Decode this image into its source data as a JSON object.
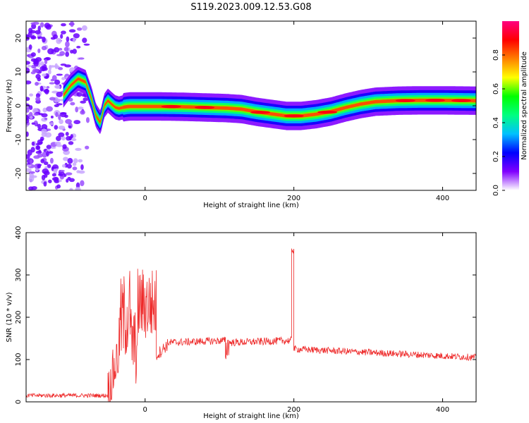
{
  "figure": {
    "title": "S119.2023.009.12.53.G08"
  },
  "chart_data": [
    {
      "type": "heatmap",
      "xlabel": "Height of straight line (km)",
      "ylabel": "Frequency (Hz)",
      "xlim": [
        -160,
        445
      ],
      "ylim": [
        -25,
        25
      ],
      "xticks": [
        0,
        200,
        400
      ],
      "yticks": [
        -20,
        -10,
        0,
        10,
        20
      ],
      "grid": false,
      "noise_region_x": [
        -160,
        -75
      ],
      "ridge": {
        "x": [
          -110,
          -100,
          -90,
          -80,
          -72,
          -66,
          -60,
          -55,
          -50,
          -45,
          -40,
          -35,
          -30,
          -25,
          -20,
          -10,
          0,
          20,
          50,
          80,
          110,
          130,
          150,
          170,
          190,
          210,
          230,
          250,
          270,
          290,
          310,
          340,
          370,
          400,
          445
        ],
        "y": [
          3,
          6,
          8,
          7,
          2,
          -3,
          -5,
          0,
          1.5,
          0.5,
          -0.5,
          -0.8,
          -0.5,
          -0.3,
          -0.2,
          -0.2,
          -0.2,
          -0.2,
          -0.3,
          -0.5,
          -0.7,
          -1,
          -1.8,
          -2.4,
          -3,
          -3,
          -2.5,
          -1.7,
          -0.5,
          0.5,
          1.2,
          1.5,
          1.6,
          1.6,
          1.5
        ]
      },
      "colorbar": {
        "label": "Normalized spectral amplitude",
        "range": [
          0,
          1
        ],
        "ticks": [
          0.0,
          0.2,
          0.4,
          0.6,
          0.8
        ],
        "colormap": [
          "#ffffff",
          "#8000ff",
          "#0000ff",
          "#00c0ff",
          "#00ff80",
          "#00ff00",
          "#ffff00",
          "#ff8000",
          "#ff0000",
          "#ff0080"
        ]
      }
    },
    {
      "type": "line",
      "xlabel": "Height of straight line (km)",
      "ylabel": "SNR (10 * v/v)",
      "xlim": [
        -160,
        445
      ],
      "ylim": [
        0,
        400
      ],
      "xticks": [
        0,
        200,
        400
      ],
      "yticks": [
        0,
        100,
        200,
        300,
        400
      ],
      "grid": false,
      "series_color": "#ee2a2a",
      "segments": [
        {
          "x": [
            -160,
            -50
          ],
          "y": [
            15,
            15
          ],
          "noise": 5
        },
        {
          "x": [
            -50,
            -35
          ],
          "y": [
            20,
            120
          ],
          "noise": 60
        },
        {
          "x": [
            -35,
            -20
          ],
          "y": [
            180,
            220
          ],
          "noise": 110
        },
        {
          "x": [
            -20,
            -10
          ],
          "y": [
            150,
            120
          ],
          "noise": 90
        },
        {
          "x": [
            -10,
            15
          ],
          "y": [
            230,
            230
          ],
          "noise": 90
        },
        {
          "x": [
            15,
            30
          ],
          "y": [
            110,
            135
          ],
          "noise": 15
        },
        {
          "x": [
            30,
            108
          ],
          "y": [
            140,
            145
          ],
          "noise": 9
        },
        {
          "x": [
            108,
            113
          ],
          "y": [
            120,
            140
          ],
          "noise": 30
        },
        {
          "x": [
            113,
            197
          ],
          "y": [
            140,
            145
          ],
          "noise": 9
        },
        {
          "x": [
            197,
            200
          ],
          "y": [
            360,
            360
          ],
          "noise": 10
        },
        {
          "x": [
            200,
            445
          ],
          "y": [
            125,
            105
          ],
          "noise": 8
        }
      ]
    }
  ]
}
